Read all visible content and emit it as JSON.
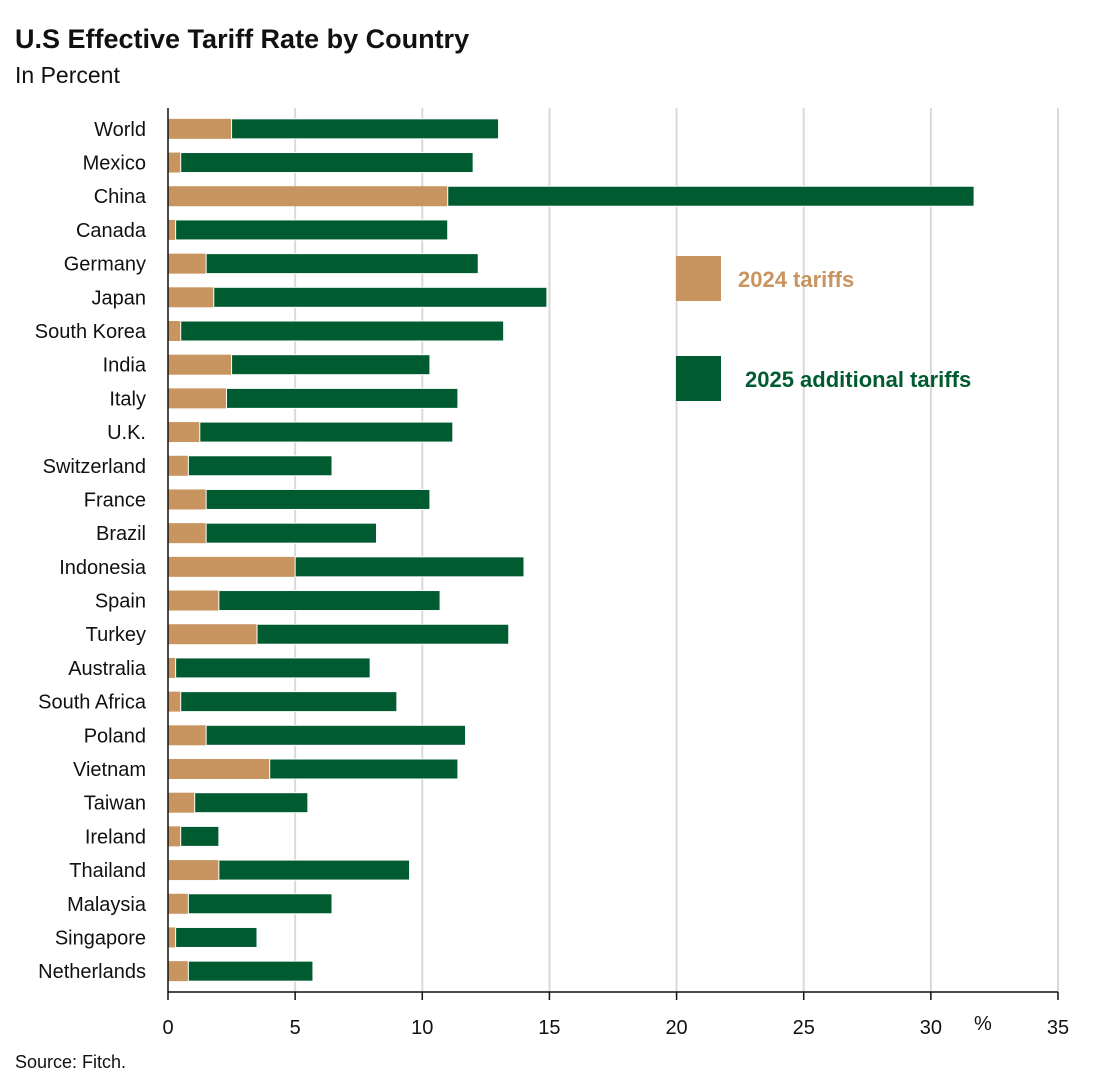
{
  "chart_data": {
    "type": "bar",
    "orientation": "horizontal",
    "stacked": true,
    "title": "U.S Effective Tariff Rate by Country",
    "subtitle": "In Percent",
    "xlabel": "%",
    "source": "Source: Fitch.",
    "xlim": [
      0,
      35
    ],
    "xticks": [
      0,
      5,
      10,
      15,
      20,
      25,
      30,
      35
    ],
    "grid": true,
    "legend_position": "right-top",
    "categories": [
      "World",
      "Mexico",
      "China",
      "Canada",
      "Germany",
      "Japan",
      "South Korea",
      "India",
      "Italy",
      "U.K.",
      "Switzerland",
      "France",
      "Brazil",
      "Indonesia",
      "Spain",
      "Turkey",
      "Australia",
      "South Africa",
      "Poland",
      "Vietnam",
      "Taiwan",
      "Ireland",
      "Thailand",
      "Malaysia",
      "Singapore",
      "Netherlands"
    ],
    "series": [
      {
        "name": "2024 tariffs",
        "color": "#C8945F",
        "values": [
          2.5,
          0.5,
          11.0,
          0.3,
          1.5,
          1.8,
          0.5,
          2.5,
          2.3,
          1.25,
          0.8,
          1.5,
          1.5,
          5.0,
          2.0,
          3.5,
          0.3,
          0.5,
          1.5,
          4.0,
          1.05,
          0.5,
          2.0,
          0.8,
          0.3,
          0.8
        ]
      },
      {
        "name": "2025 additional tariffs",
        "color": "#005C30",
        "values": [
          10.5,
          11.5,
          20.7,
          10.7,
          10.7,
          13.1,
          12.7,
          7.8,
          9.1,
          9.95,
          5.65,
          8.8,
          6.7,
          9.0,
          8.7,
          9.9,
          7.65,
          8.5,
          10.2,
          7.4,
          4.45,
          1.5,
          7.5,
          5.65,
          3.2,
          4.9
        ]
      }
    ]
  }
}
